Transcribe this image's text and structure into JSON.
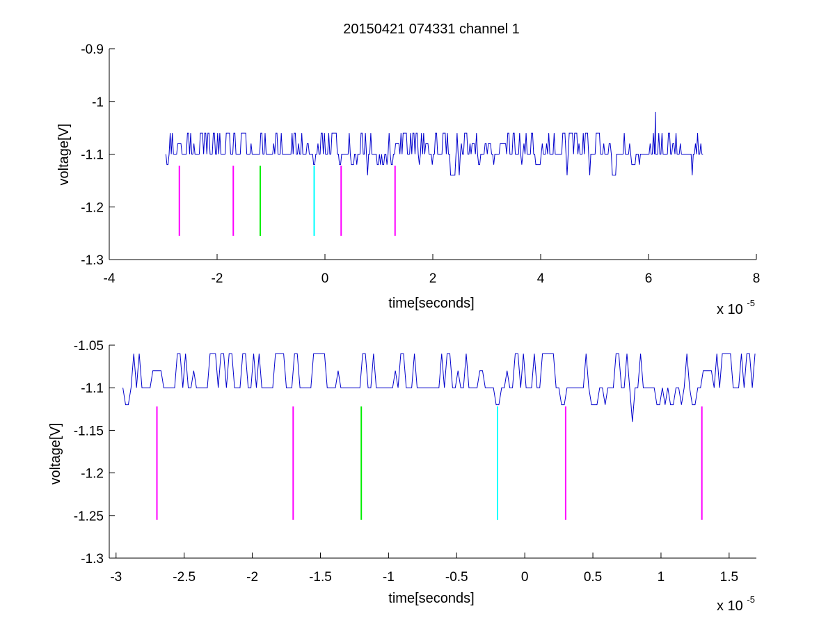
{
  "figure": {
    "title": "20150421 074331 channel 1",
    "background": "#ffffff"
  },
  "colors": {
    "signal": "#0000cc",
    "magenta": "#ff00ff",
    "green": "#00ee00",
    "cyan": "#00ffff",
    "axis": "#000000"
  },
  "chart_data": [
    {
      "type": "line",
      "title": "20150421 074331 channel 1",
      "xlabel": "time[seconds]",
      "ylabel": "voltage[V]",
      "x_exponent_label": "x 10",
      "x_exponent": "-5",
      "xlim": [
        -4,
        8
      ],
      "ylim": [
        -1.3,
        -0.9
      ],
      "x_ticks": [
        -4,
        -2,
        0,
        2,
        4,
        6,
        8
      ],
      "x_tick_labels": [
        "-4",
        "-2",
        "0",
        "2",
        "4",
        "6",
        "8"
      ],
      "y_ticks": [
        -1.3,
        -1.2,
        -1.1,
        -1,
        -0.9
      ],
      "y_tick_labels": [
        "-1.3",
        "-1.2",
        "-1.1",
        "-1",
        "-0.9"
      ],
      "grid": false,
      "legend": "none",
      "series": [
        {
          "color": "#0000cc",
          "x_range": [
            -2.95,
            7.02
          ],
          "baseline": -1.1,
          "levels": [
            -1.14,
            -1.12,
            -1.1,
            -1.08,
            -1.06
          ],
          "spike": {
            "x": 6.13,
            "y": -1.02
          }
        }
      ],
      "markers": [
        {
          "x": -2.7,
          "y_top": -1.122,
          "y_bottom": -1.255,
          "color": "#ff00ff"
        },
        {
          "x": -1.7,
          "y_top": -1.122,
          "y_bottom": -1.255,
          "color": "#ff00ff"
        },
        {
          "x": -1.2,
          "y_top": -1.122,
          "y_bottom": -1.255,
          "color": "#00ee00"
        },
        {
          "x": -0.2,
          "y_top": -1.122,
          "y_bottom": -1.255,
          "color": "#00ffff"
        },
        {
          "x": 0.3,
          "y_top": -1.122,
          "y_bottom": -1.255,
          "color": "#ff00ff"
        },
        {
          "x": 1.3,
          "y_top": -1.122,
          "y_bottom": -1.255,
          "color": "#ff00ff"
        }
      ]
    },
    {
      "type": "line",
      "title": "",
      "xlabel": "time[seconds]",
      "ylabel": "voltage[V]",
      "x_exponent_label": "x 10",
      "x_exponent": "-5",
      "xlim": [
        -3.05,
        1.7
      ],
      "ylim": [
        -1.3,
        -1.05
      ],
      "x_ticks": [
        -3,
        -2.5,
        -2,
        -1.5,
        -1,
        -0.5,
        0,
        0.5,
        1,
        1.5
      ],
      "x_tick_labels": [
        "-3",
        "-2.5",
        "-2",
        "-1.5",
        "-1",
        "-0.5",
        "0",
        "0.5",
        "1",
        "1.5"
      ],
      "y_ticks": [
        -1.3,
        -1.25,
        -1.2,
        -1.15,
        -1.1,
        -1.05
      ],
      "y_tick_labels": [
        "-1.3",
        "-1.25",
        "-1.2",
        "-1.15",
        "-1.1",
        "-1.05"
      ],
      "grid": false,
      "legend": "none",
      "series": [
        {
          "color": "#0000cc",
          "x_range": [
            -2.95,
            1.7
          ],
          "baseline": -1.1,
          "levels": [
            -1.14,
            -1.12,
            -1.1,
            -1.08,
            -1.06
          ]
        }
      ],
      "markers": [
        {
          "x": -2.7,
          "y_top": -1.122,
          "y_bottom": -1.255,
          "color": "#ff00ff"
        },
        {
          "x": -1.7,
          "y_top": -1.122,
          "y_bottom": -1.255,
          "color": "#ff00ff"
        },
        {
          "x": -1.2,
          "y_top": -1.122,
          "y_bottom": -1.255,
          "color": "#00ee00"
        },
        {
          "x": -0.2,
          "y_top": -1.122,
          "y_bottom": -1.255,
          "color": "#00ffff"
        },
        {
          "x": 0.3,
          "y_top": -1.122,
          "y_bottom": -1.255,
          "color": "#ff00ff"
        },
        {
          "x": 1.3,
          "y_top": -1.122,
          "y_bottom": -1.255,
          "color": "#ff00ff"
        }
      ]
    }
  ]
}
